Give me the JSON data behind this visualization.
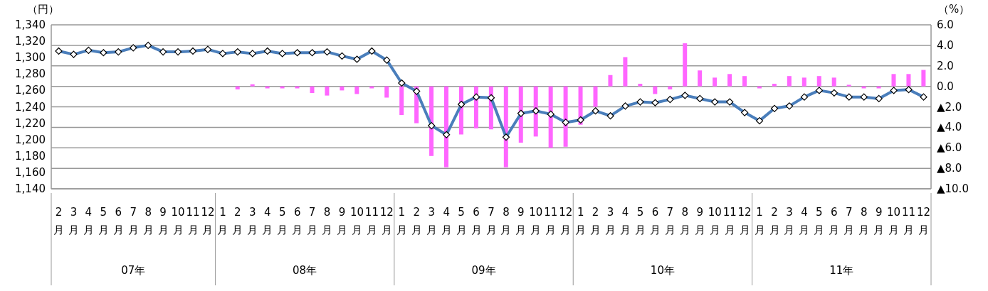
{
  "chart_data": {
    "type": "line",
    "ylabel": "（円）",
    "y2label": "（%）",
    "categories": [
      "2月",
      "3月",
      "4月",
      "5月",
      "6月",
      "7月",
      "8月",
      "9月",
      "10月",
      "11月",
      "12月",
      "1月",
      "2月",
      "3月",
      "4月",
      "5月",
      "6月",
      "7月",
      "8月",
      "9月",
      "10月",
      "11月",
      "12月",
      "1月",
      "2月",
      "3月",
      "4月",
      "5月",
      "6月",
      "7月",
      "8月",
      "9月",
      "10月",
      "11月",
      "12月",
      "1月",
      "2月",
      "3月",
      "4月",
      "5月",
      "6月",
      "7月",
      "8月",
      "9月",
      "10月",
      "11月",
      "12月",
      "1月",
      "2月",
      "3月",
      "4月",
      "5月",
      "6月",
      "7月",
      "8月",
      "9月",
      "10月",
      "11月",
      "12月"
    ],
    "annotations": [
      "07年",
      "08年",
      "09年",
      "10年",
      "11年"
    ],
    "series": [
      {
        "type": "bar",
        "axis": "y2",
        "color": "#ff66ff",
        "values": [
          null,
          null,
          null,
          null,
          null,
          null,
          null,
          null,
          null,
          null,
          null,
          null,
          -0.3,
          0.2,
          -0.2,
          -0.2,
          -0.2,
          -0.65,
          -0.9,
          -0.4,
          -0.75,
          -0.2,
          -1.1,
          -2.8,
          -3.6,
          -6.8,
          -7.9,
          -4.7,
          -4.1,
          -4.2,
          -7.9,
          -5.5,
          -4.9,
          -6.0,
          -5.9,
          -3.75,
          -2.0,
          1.1,
          2.85,
          0.25,
          -0.75,
          -0.3,
          4.2,
          1.55,
          0.85,
          1.2,
          1.0,
          -0.2,
          0.25,
          1.0,
          0.85,
          1.0,
          0.85,
          0.15,
          -0.2,
          -0.2,
          1.2,
          1.2,
          1.6
        ]
      },
      {
        "color": "#4a7ebb",
        "values": [
          1308,
          1304,
          1309,
          1306,
          1307,
          1312,
          1315,
          1307,
          1307,
          1308,
          1310,
          1305,
          1307,
          1305,
          1308,
          1305,
          1306,
          1306,
          1307,
          1302,
          1298,
          1308,
          1297,
          1269,
          1259,
          1217,
          1206,
          1243,
          1252,
          1251,
          1203,
          1232,
          1235,
          1231,
          1221,
          1224,
          1235,
          1229,
          1241,
          1246,
          1245,
          1249,
          1254,
          1250,
          1246,
          1246,
          1233,
          1223,
          1238,
          1241,
          1252,
          1260,
          1257,
          1252,
          1252,
          1250,
          1260,
          1261,
          1252
        ]
      }
    ],
    "ylim": [
      1140,
      1340
    ],
    "yticks": [
      {
        "value": 1140,
        "label": "1,140"
      },
      {
        "value": 1160,
        "label": "1,160"
      },
      {
        "value": 1180,
        "label": "1,180"
      },
      {
        "value": 1200,
        "label": "1,200"
      },
      {
        "value": 1220,
        "label": "1,220"
      },
      {
        "value": 1240,
        "label": "1,240"
      },
      {
        "value": 1260,
        "label": "1,260"
      },
      {
        "value": 1280,
        "label": "1,280"
      },
      {
        "value": 1300,
        "label": "1,300"
      },
      {
        "value": 1320,
        "label": "1,320"
      },
      {
        "value": 1340,
        "label": "1,340"
      }
    ],
    "y2lim": [
      -10,
      6
    ],
    "y2ticks": [
      {
        "value": -10,
        "label": "▲10.0"
      },
      {
        "value": -8,
        "label": "▲8.0"
      },
      {
        "value": -6,
        "label": "▲6.0"
      },
      {
        "value": -4,
        "label": "▲4.0"
      },
      {
        "value": -2,
        "label": "▲2.0"
      },
      {
        "value": 0,
        "label": "0.0"
      },
      {
        "value": 2,
        "label": "2.0"
      },
      {
        "value": 4,
        "label": "4.0"
      },
      {
        "value": 6,
        "label": "6.0"
      }
    ],
    "grid": "y2",
    "marker": "diamond",
    "line_style": "solid",
    "legend": false
  }
}
